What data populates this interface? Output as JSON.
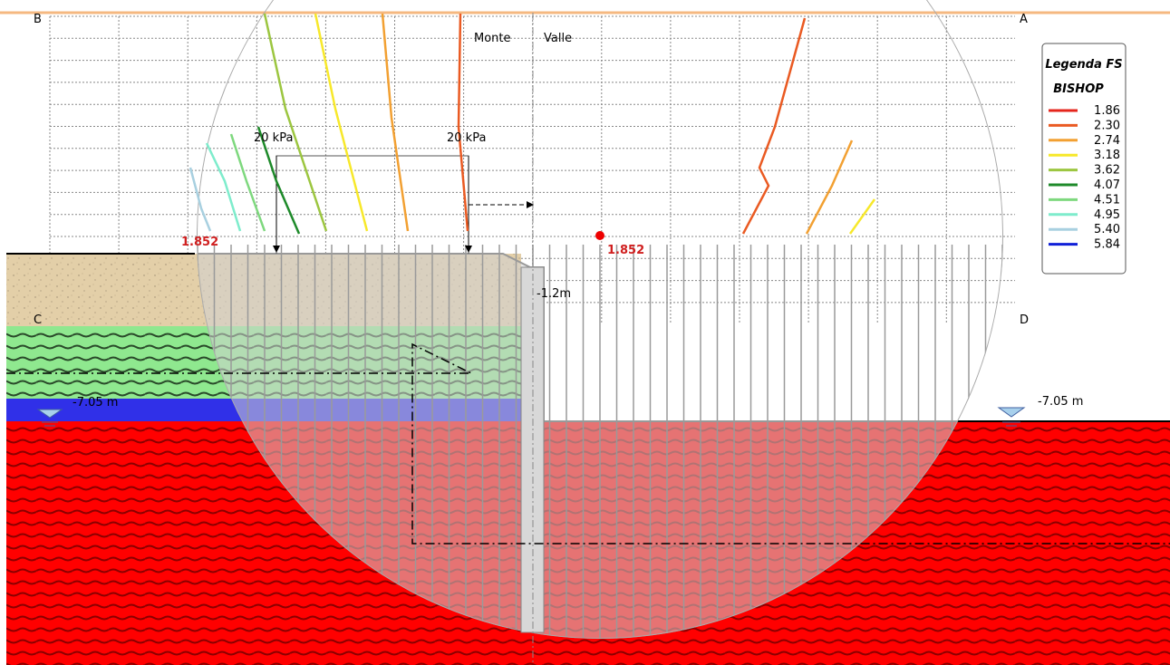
{
  "labels": {
    "corner_b": "B",
    "corner_a": "A",
    "corner_c": "C",
    "corner_d": "D",
    "monte": "Monte",
    "valle": "Valle",
    "load_left": "20 kPa",
    "load_right": "20 kPa",
    "fs_left": "1.852",
    "fs_center": "1.852",
    "wall_head": "-1.2m",
    "water_left": "-7.05 m",
    "water_right": "-7.05 m"
  },
  "legend": {
    "title": "Legenda FS",
    "method": "BISHOP",
    "items": [
      {
        "label": "1.86",
        "color": "#e5261c"
      },
      {
        "label": "2.30",
        "color": "#ea5a22"
      },
      {
        "label": "2.74",
        "color": "#f2a032"
      },
      {
        "label": "3.18",
        "color": "#f7e82a"
      },
      {
        "label": "3.62",
        "color": "#9cc640"
      },
      {
        "label": "4.07",
        "color": "#1e8a2a"
      },
      {
        "label": "4.51",
        "color": "#7ed87e"
      },
      {
        "label": "4.95",
        "color": "#7eeccc"
      },
      {
        "label": "5.40",
        "color": "#a8d0e0"
      },
      {
        "label": "5.84",
        "color": "#1020d8"
      }
    ]
  }
}
